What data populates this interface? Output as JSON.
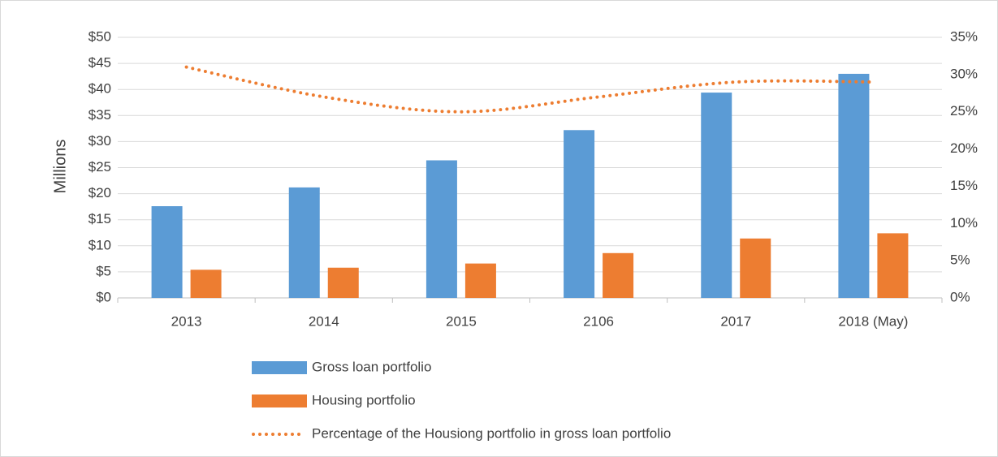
{
  "chart_data": {
    "type": "bar_line",
    "y_axis_label": "Millions",
    "categories": [
      "2013",
      "2014",
      "2015",
      "2106",
      "2017",
      "2018 (May)"
    ],
    "series": [
      {
        "name": "Gross loan portfolio",
        "color": "#5b9bd5",
        "type": "bar",
        "values": [
          17.6,
          21.2,
          26.4,
          32.2,
          39.4,
          43.0
        ]
      },
      {
        "name": "Housing portfolio",
        "color": "#ed7d31",
        "type": "bar",
        "values": [
          5.4,
          5.8,
          6.6,
          8.6,
          11.4,
          12.4
        ]
      },
      {
        "name": "Percentage of the Housiong portfolio in gross loan portfolio",
        "color": "#ed7d31",
        "type": "line",
        "line_style": "dotted",
        "axis": "y2",
        "values": [
          31,
          27,
          25,
          27,
          29,
          29
        ]
      }
    ],
    "ylim": [
      0,
      50
    ],
    "yticks": [
      {
        "value": 0,
        "label": "$0"
      },
      {
        "value": 5,
        "label": "$5"
      },
      {
        "value": 10,
        "label": "$10"
      },
      {
        "value": 15,
        "label": "$15"
      },
      {
        "value": 20,
        "label": "$20"
      },
      {
        "value": 25,
        "label": "$25"
      },
      {
        "value": 30,
        "label": "$30"
      },
      {
        "value": 35,
        "label": "$35"
      },
      {
        "value": 40,
        "label": "$40"
      },
      {
        "value": 45,
        "label": "$45"
      },
      {
        "value": 50,
        "label": "$50"
      }
    ],
    "y2lim": [
      0,
      35
    ],
    "y2ticks": [
      {
        "value": 0,
        "label": "0%"
      },
      {
        "value": 5,
        "label": "5%"
      },
      {
        "value": 10,
        "label": "10%"
      },
      {
        "value": 15,
        "label": "15%"
      },
      {
        "value": 20,
        "label": "20%"
      },
      {
        "value": 25,
        "label": "25%"
      },
      {
        "value": 30,
        "label": "30%"
      },
      {
        "value": 35,
        "label": "35%"
      }
    ],
    "grid": true,
    "legend": "bottom"
  }
}
